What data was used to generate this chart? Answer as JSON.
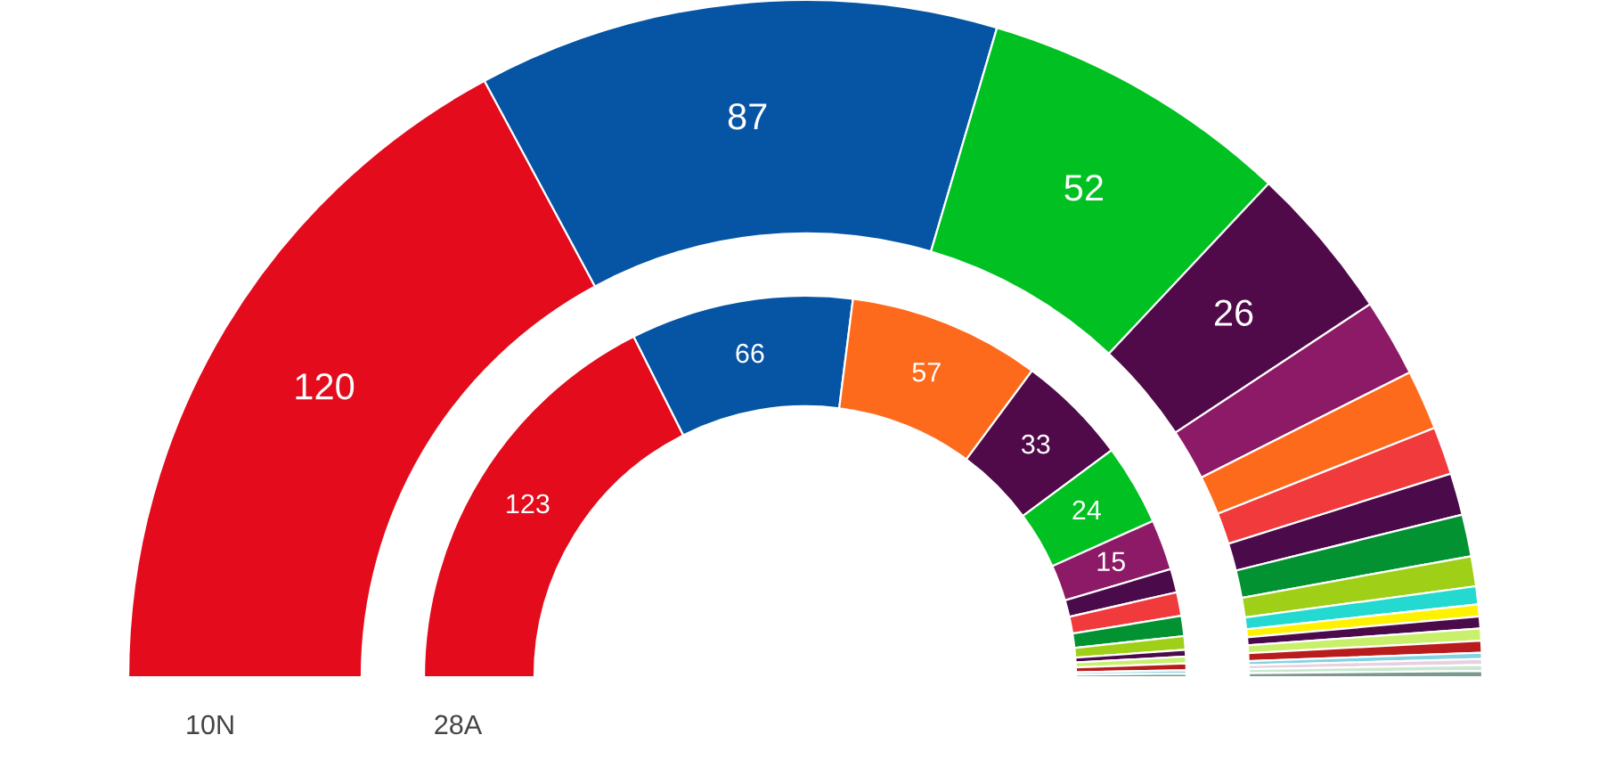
{
  "chart_data": {
    "type": "donut",
    "categories": [
      null,
      null,
      null,
      null,
      null,
      null,
      null,
      null,
      null,
      null,
      null,
      null,
      null,
      null,
      null,
      null,
      null,
      null,
      null
    ],
    "series": [
      {
        "name": "10N",
        "values": [
          120,
          87,
          52,
          26,
          13,
          10,
          8,
          7,
          7,
          5,
          3,
          2,
          2,
          2,
          2,
          1,
          1,
          1,
          1
        ],
        "value_labels": [
          "120",
          "87",
          "52",
          "26",
          null,
          null,
          null,
          null,
          null,
          null,
          null,
          null,
          null,
          null,
          null,
          null,
          null,
          null,
          null
        ],
        "colors": [
          "#e30b1c",
          "#0654a4",
          "#00c121",
          "#500a4a",
          "#8d1a67",
          "#fe6a1c",
          "#f03a3c",
          "#4b0a4a",
          "#029232",
          "#9fcf17",
          "#23d9d0",
          "#fff200",
          "#4b0a4a",
          "#c8f06a",
          "#b81c1c",
          "#80d4e4",
          "#e8d0e0",
          "#c8e8d0",
          "#7a9a90"
        ]
      },
      {
        "name": "28A",
        "values": [
          123,
          66,
          57,
          33,
          24,
          15,
          7,
          7,
          6,
          4,
          2,
          2,
          2,
          1,
          1,
          null,
          null,
          null,
          null
        ],
        "value_labels": [
          "123",
          "66",
          "57",
          "33",
          "24",
          "15",
          null,
          null,
          null,
          null,
          null,
          null,
          null,
          null,
          null,
          null,
          null,
          null,
          null
        ],
        "colors": [
          "#e30b1c",
          "#0654a4",
          "#fe6a1c",
          "#500a4a",
          "#00c121",
          "#8d1a67",
          "#4b0a4a",
          "#f03a3c",
          "#029232",
          "#9fcf17",
          "#4b0a4a",
          "#c8f06a",
          "#b81c1c",
          "#80d4e4",
          "#7a9a90",
          "#ffffff",
          "#ffffff",
          "#ffffff",
          "#ffffff"
        ]
      }
    ]
  }
}
